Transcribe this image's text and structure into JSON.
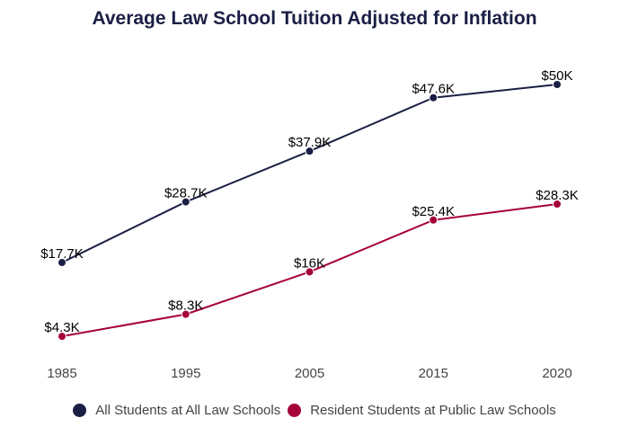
{
  "chart_data": {
    "type": "line",
    "title": "Average Law School Tuition Adjusted for Inflation",
    "categories": [
      "1985",
      "1995",
      "2005",
      "2015",
      "2020"
    ],
    "series": [
      {
        "name": "All Students at All Law Schools",
        "color": "#1b1f45",
        "values": [
          17.7,
          28.7,
          37.9,
          47.6,
          50
        ],
        "labels": [
          "$17.7K",
          "$28.7K",
          "$37.9K",
          "$47.6K",
          "$50K"
        ]
      },
      {
        "name": "Resident Students at Public Law Schools",
        "color": "#a6003a",
        "values": [
          4.3,
          8.3,
          16,
          25.4,
          28.3
        ],
        "labels": [
          "$4.3K",
          "$8.3K",
          "$16K",
          "$25.4K",
          "$28.3K"
        ]
      }
    ],
    "xlabel": "",
    "ylabel": "",
    "ylim": [
      0,
      50
    ],
    "grid": false,
    "legend": "bottom"
  }
}
